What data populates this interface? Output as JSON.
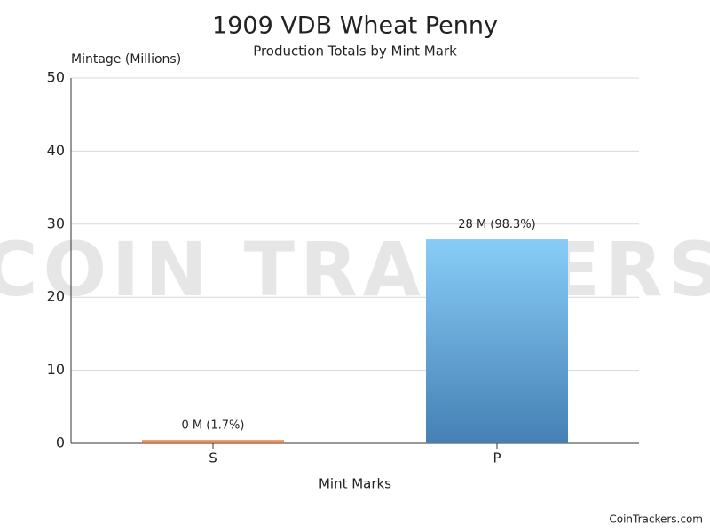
{
  "chart_data": {
    "type": "bar",
    "title": "1909 VDB Wheat Penny",
    "subtitle": "Production Totals by Mint Mark",
    "y_label": "Mintage (Millions)",
    "x_label": "Mint Marks",
    "categories": [
      "S",
      "P"
    ],
    "values": [
      0.484,
      27.995
    ],
    "value_labels": [
      "0 M (1.7%)",
      "28 M (98.3%)"
    ],
    "colors": [
      [
        "#f3a774",
        "#e06c3c"
      ],
      [
        "#88cdf8",
        "#4580b4"
      ]
    ],
    "ylim": [
      0,
      50
    ],
    "yticks": [
      0,
      10,
      20,
      30,
      40,
      50
    ],
    "grid": true,
    "watermark": "COIN TRACKERS",
    "footer": "CoinTrackers.com"
  }
}
